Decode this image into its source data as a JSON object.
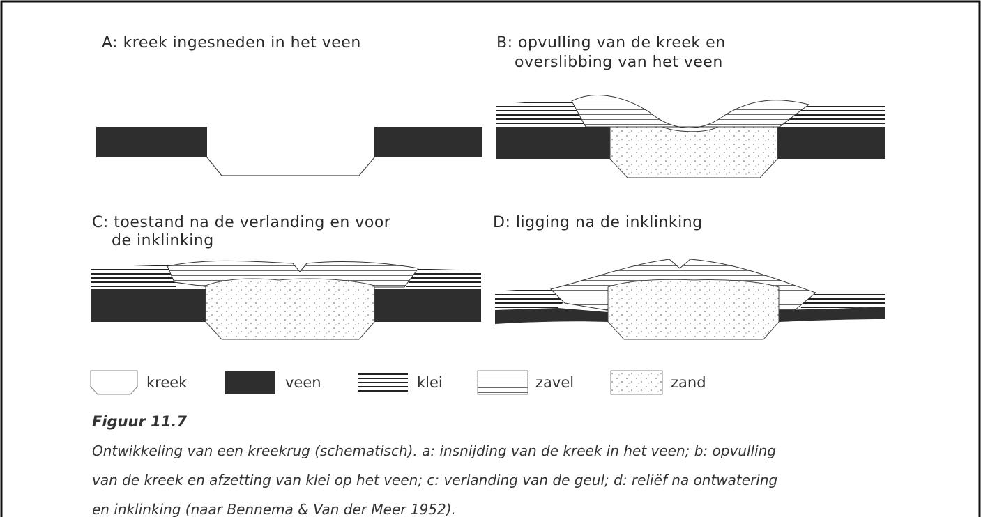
{
  "panels": [
    {
      "title": [
        "A: kreek ingesneden in het veen"
      ]
    },
    {
      "title": [
        "B: opvulling van de kreek en",
        "overslibbing van het veen"
      ]
    },
    {
      "title": [
        "C: toestand na de verlanding en voor",
        "de inklinking"
      ]
    },
    {
      "title": [
        "D: ligging na de inklinking"
      ]
    }
  ],
  "legend": [
    "kreek",
    "veen",
    "klei",
    "zavel",
    "zand"
  ],
  "figure": {
    "label": "Figuur 11.7",
    "caption": [
      "Ontwikkeling van een kreekrug (schematisch). a: insnijding van de kreek in het veen; b: opvulling",
      "van de kreek en afzetting van klei op het veen; c: verlanding van de geul; d: reliëf na ontwatering",
      "en inklinking (naar Bennema & Van der Meer 1952)."
    ]
  }
}
